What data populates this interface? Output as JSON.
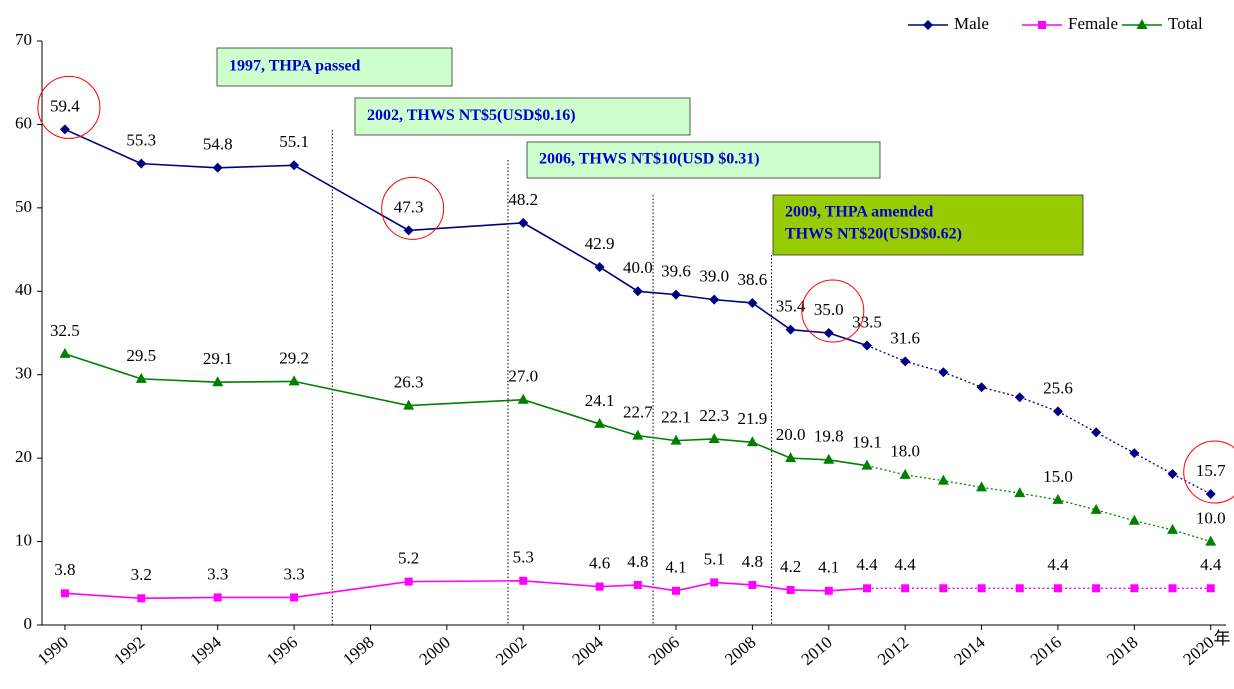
{
  "chart_data": {
    "type": "line",
    "xlabel": "年",
    "x": [
      1990,
      1992,
      1994,
      1996,
      1999,
      2002,
      2004,
      2005,
      2006,
      2007,
      2008,
      2009,
      2010,
      2011,
      2012,
      2013,
      2014,
      2015,
      2016,
      2017,
      2018,
      2019,
      2020
    ],
    "projected_from": 2011,
    "series": [
      {
        "name": "Male",
        "color": "#000080",
        "marker": "diamond",
        "values": [
          59.4,
          55.3,
          54.8,
          55.1,
          47.3,
          48.2,
          42.9,
          40.0,
          39.6,
          39.0,
          38.6,
          35.4,
          35.0,
          33.5,
          31.6,
          30.3,
          28.5,
          27.3,
          25.6,
          23.1,
          20.6,
          18.1,
          15.7
        ],
        "value_labels": [
          "59.4",
          "55.3",
          "54.8",
          "55.1",
          "47.3",
          "48.2",
          "42.9",
          "40.0",
          "39.6",
          "39.0",
          "38.6",
          "35.4",
          "35.0",
          "33.5",
          "31.6",
          null,
          null,
          null,
          "25.6",
          null,
          null,
          null,
          "15.7"
        ]
      },
      {
        "name": "Female",
        "color": "#ff00ff",
        "marker": "square",
        "values": [
          3.8,
          3.2,
          3.3,
          3.3,
          5.2,
          5.3,
          4.6,
          4.8,
          4.1,
          5.1,
          4.8,
          4.2,
          4.1,
          4.4,
          4.4,
          4.4,
          4.4,
          4.4,
          4.4,
          4.4,
          4.4,
          4.4,
          4.4
        ],
        "value_labels": [
          "3.8",
          "3.2",
          "3.3",
          "3.3",
          "5.2",
          "5.3",
          "4.6",
          "4.8",
          "4.1",
          "5.1",
          "4.8",
          "4.2",
          "4.1",
          "4.4",
          "4.4",
          null,
          null,
          null,
          "4.4",
          null,
          null,
          null,
          "4.4"
        ]
      },
      {
        "name": "Total",
        "color": "#008000",
        "marker": "triangle",
        "values": [
          32.5,
          29.5,
          29.1,
          29.2,
          26.3,
          27.0,
          24.1,
          22.7,
          22.1,
          22.3,
          21.9,
          20.0,
          19.8,
          19.1,
          18.0,
          17.3,
          16.5,
          15.8,
          15.0,
          13.8,
          12.5,
          11.4,
          10.0
        ],
        "value_labels": [
          "32.5",
          "29.5",
          "29.1",
          "29.2",
          "26.3",
          "27.0",
          "24.1",
          "22.7",
          "22.1",
          "22.3",
          "21.9",
          "20.0",
          "19.8",
          "19.1",
          "18.0",
          null,
          null,
          null,
          "15.0",
          null,
          null,
          null,
          "10.0"
        ]
      }
    ],
    "xlim": [
      1989.4,
      2020.4
    ],
    "xticks": [
      1990,
      1992,
      1994,
      1996,
      1998,
      2000,
      2002,
      2004,
      2006,
      2008,
      2010,
      2012,
      2014,
      2016,
      2018,
      2020
    ],
    "ylim": [
      0,
      70
    ],
    "yticks": [
      0,
      10,
      20,
      30,
      40,
      50,
      60,
      70
    ],
    "grid": false,
    "legend": "top-right",
    "annotations": [
      {
        "lines": [
          "1997, THPA passed"
        ],
        "x": 1997.0,
        "color": "#ccffcc"
      },
      {
        "lines": [
          "2002, THWS NT$5(USD$0.16)"
        ],
        "x": 2001.6,
        "color": "#ccffcc"
      },
      {
        "lines": [
          "2006, THWS NT$10(USD $0.31)"
        ],
        "x": 2005.4,
        "color": "#ccffcc"
      },
      {
        "lines": [
          "2009, THPA amended",
          "THWS NT$20(USD$0.62)"
        ],
        "x": 2008.5,
        "color": "#99cc00"
      }
    ]
  }
}
